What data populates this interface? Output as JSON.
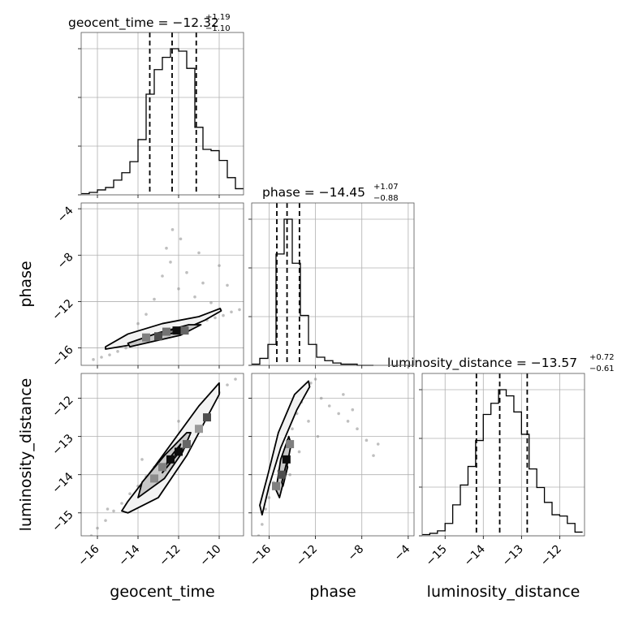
{
  "chart_data": {
    "type": "corner",
    "grid": true,
    "params": [
      {
        "name": "geocent_time",
        "xlabel": "geocent_time",
        "ylabel": "",
        "range": [
          -16.8,
          -8.8
        ],
        "ticks": [
          -16,
          -14,
          -12,
          -10
        ],
        "tick_labels": [
          "−16",
          "−14",
          "−12",
          "−10"
        ],
        "title_main": "geocent_time = −12.32",
        "title_plus": "+1.19",
        "title_minus": "−1.10",
        "quantiles": [
          -13.42,
          -12.32,
          -11.13
        ],
        "hist": {
          "edges": [
            -16.8,
            -16.4,
            -16.0,
            -15.6,
            -15.2,
            -14.8,
            -14.4,
            -14.0,
            -13.6,
            -13.2,
            -12.8,
            -12.4,
            -12.0,
            -11.6,
            -11.2,
            -10.8,
            -10.4,
            -10.0,
            -9.6,
            -9.2,
            -8.8
          ],
          "counts": [
            1,
            2,
            4,
            6,
            12,
            18,
            27,
            45,
            82,
            102,
            112,
            119,
            117,
            103,
            55,
            37,
            36,
            28,
            14,
            5
          ]
        }
      },
      {
        "name": "phase",
        "xlabel": "phase",
        "ylabel": "phase",
        "range": [
          -17.5,
          -3.5
        ],
        "ticks": [
          -16,
          -12,
          -8,
          -4
        ],
        "tick_labels": [
          "−16",
          "−12",
          "−8",
          "−4"
        ],
        "title_main": "phase = −14.45",
        "title_plus": "+1.07",
        "title_minus": "−0.88",
        "quantiles": [
          -15.33,
          -14.45,
          -13.38
        ],
        "hist": {
          "edges": [
            -17.5,
            -16.8,
            -16.1,
            -15.4,
            -14.7,
            -14.0,
            -13.3,
            -12.6,
            -11.9,
            -11.2,
            -10.5,
            -9.8,
            -9.1,
            -8.4,
            -7.7,
            -7.0
          ],
          "counts": [
            1,
            6,
            18,
            96,
            126,
            88,
            43,
            18,
            7,
            4,
            2,
            1,
            1,
            0,
            0
          ]
        }
      },
      {
        "name": "luminosity_distance",
        "xlabel": "luminosity_distance",
        "ylabel": "luminosity_distance",
        "range": [
          -15.6,
          -11.35
        ],
        "ticks": [
          -15,
          -14,
          -13,
          -12
        ],
        "tick_labels": [
          "−15",
          "−14",
          "−13",
          "−12"
        ],
        "title_main": "luminosity_distance = −13.57",
        "title_plus": "+0.72",
        "title_minus": "−0.61",
        "quantiles": [
          -14.18,
          -13.57,
          -12.85
        ],
        "hist": {
          "edges": [
            -15.6,
            -15.4,
            -15.2,
            -15.0,
            -14.8,
            -14.6,
            -14.4,
            -14.2,
            -14.0,
            -13.8,
            -13.6,
            -13.4,
            -13.2,
            -13.0,
            -12.8,
            -12.6,
            -12.4,
            -12.2,
            -12.0,
            -11.8,
            -11.6,
            -11.4
          ],
          "counts": [
            1,
            2,
            4,
            10,
            25,
            41,
            56,
            77,
            98,
            107,
            118,
            113,
            100,
            82,
            54,
            39,
            27,
            17,
            16,
            10,
            3
          ]
        }
      }
    ],
    "pairs": [
      {
        "x": "geocent_time",
        "y": "phase",
        "points": [
          [
            -16.2,
            -17.0
          ],
          [
            -15.8,
            -16.8
          ],
          [
            -15.4,
            -16.6
          ],
          [
            -15.0,
            -16.3
          ],
          [
            -14.6,
            -16.0
          ],
          [
            -14.2,
            -15.7
          ],
          [
            -13.8,
            -15.4
          ],
          [
            -13.4,
            -15.2
          ],
          [
            -13.0,
            -15.0
          ],
          [
            -12.6,
            -14.7
          ],
          [
            -12.2,
            -14.5
          ],
          [
            -11.8,
            -14.3
          ],
          [
            -11.4,
            -14.1
          ],
          [
            -11.0,
            -13.8
          ],
          [
            -10.6,
            -13.6
          ],
          [
            -10.2,
            -13.4
          ],
          [
            -9.8,
            -13.2
          ],
          [
            -9.4,
            -12.9
          ],
          [
            -9.0,
            -12.7
          ],
          [
            -12.8,
            -9.8
          ],
          [
            -12.4,
            -8.6
          ],
          [
            -12.0,
            -10.9
          ],
          [
            -11.6,
            -9.5
          ],
          [
            -11.2,
            -11.6
          ],
          [
            -10.8,
            -10.4
          ],
          [
            -10.4,
            -12.1
          ],
          [
            -13.2,
            -11.8
          ],
          [
            -12.6,
            -7.4
          ],
          [
            -12.3,
            -5.8
          ],
          [
            -11.9,
            -6.6
          ],
          [
            -10.0,
            -8.9
          ],
          [
            -9.6,
            -10.6
          ],
          [
            -13.6,
            -13.1
          ],
          [
            -14.0,
            -13.9
          ],
          [
            -11.0,
            -7.8
          ]
        ],
        "contours": [
          [
            [
              -15.6,
              -15.9
            ],
            [
              -14.5,
              -14.8
            ],
            [
              -12.8,
              -13.9
            ],
            [
              -11.0,
              -13.3
            ],
            [
              -9.95,
              -12.6
            ],
            [
              -9.9,
              -12.8
            ],
            [
              -10.7,
              -13.6
            ],
            [
              -12.4,
              -14.9
            ],
            [
              -14.2,
              -15.7
            ],
            [
              -15.6,
              -16.1
            ]
          ],
          [
            [
              -14.5,
              -15.6
            ],
            [
              -13.0,
              -14.7
            ],
            [
              -11.5,
              -14.0
            ],
            [
              -10.9,
              -14.0
            ],
            [
              -11.9,
              -14.9
            ],
            [
              -13.4,
              -15.5
            ],
            [
              -14.4,
              -15.9
            ]
          ],
          [
            [
              -12.7,
              -14.6
            ],
            [
              -12.0,
              -14.3
            ],
            [
              -11.9,
              -14.6
            ],
            [
              -12.5,
              -14.8
            ]
          ]
        ],
        "density_cells": [
          [
            -13.6,
            -15.1,
            0.5
          ],
          [
            -13.0,
            -15.0,
            0.7
          ],
          [
            -12.6,
            -14.6,
            0.55
          ],
          [
            -12.1,
            -14.5,
            0.95
          ],
          [
            -11.7,
            -14.5,
            0.6
          ]
        ]
      },
      {
        "x": "geocent_time",
        "y": "luminosity_distance",
        "points": [
          [
            -16.3,
            -15.6
          ],
          [
            -16.0,
            -15.4
          ],
          [
            -15.6,
            -15.2
          ],
          [
            -15.2,
            -14.95
          ],
          [
            -14.8,
            -14.75
          ],
          [
            -14.4,
            -14.5
          ],
          [
            -14.0,
            -14.3
          ],
          [
            -13.6,
            -14.05
          ],
          [
            -13.2,
            -13.8
          ],
          [
            -12.8,
            -13.6
          ],
          [
            -12.4,
            -13.3
          ],
          [
            -12.0,
            -13.05
          ],
          [
            -11.6,
            -12.8
          ],
          [
            -11.2,
            -12.55
          ],
          [
            -10.8,
            -12.3
          ],
          [
            -10.4,
            -12.05
          ],
          [
            -10.0,
            -11.85
          ],
          [
            -9.6,
            -11.65
          ],
          [
            -9.2,
            -11.5
          ],
          [
            -15.5,
            -14.9
          ],
          [
            -14.1,
            -14.7
          ],
          [
            -12.0,
            -12.6
          ],
          [
            -11.5,
            -13.2
          ],
          [
            -13.8,
            -13.6
          ]
        ],
        "contours": [
          [
            [
              -14.5,
              -15.0
            ],
            [
              -13.0,
              -14.6
            ],
            [
              -11.6,
              -13.5
            ],
            [
              -10.0,
              -11.9
            ],
            [
              -10.0,
              -11.6
            ],
            [
              -11.0,
              -12.2
            ],
            [
              -13.2,
              -13.8
            ],
            [
              -14.5,
              -14.7
            ],
            [
              -14.8,
              -14.95
            ]
          ],
          [
            [
              -14.0,
              -14.6
            ],
            [
              -12.7,
              -14.1
            ],
            [
              -11.8,
              -13.4
            ],
            [
              -11.4,
              -12.9
            ],
            [
              -11.6,
              -12.9
            ],
            [
              -12.7,
              -13.5
            ],
            [
              -13.8,
              -14.2
            ]
          ],
          [
            [
              -12.8,
              -13.95
            ],
            [
              -12.1,
              -13.5
            ],
            [
              -11.9,
              -13.2
            ],
            [
              -12.5,
              -13.6
            ]
          ]
        ],
        "density_cells": [
          [
            -12.4,
            -13.6,
            0.95
          ],
          [
            -12.0,
            -13.4,
            0.95
          ],
          [
            -11.6,
            -13.2,
            0.6
          ],
          [
            -12.8,
            -13.8,
            0.5
          ],
          [
            -13.2,
            -14.1,
            0.45
          ],
          [
            -10.6,
            -12.5,
            0.7
          ],
          [
            -11.0,
            -12.8,
            0.4
          ]
        ]
      },
      {
        "x": "phase",
        "y": "luminosity_distance",
        "points": [
          [
            -16.9,
            -15.6
          ],
          [
            -16.6,
            -15.3
          ],
          [
            -16.3,
            -14.9
          ],
          [
            -16.0,
            -14.6
          ],
          [
            -15.6,
            -14.2
          ],
          [
            -15.2,
            -13.9
          ],
          [
            -14.8,
            -13.5
          ],
          [
            -14.4,
            -13.1
          ],
          [
            -14.0,
            -12.8
          ],
          [
            -13.6,
            -12.4
          ],
          [
            -13.2,
            -12.1
          ],
          [
            -12.8,
            -11.8
          ],
          [
            -12.4,
            -11.6
          ],
          [
            -12.0,
            -11.5
          ],
          [
            -11.5,
            -12.0
          ],
          [
            -10.8,
            -12.2
          ],
          [
            -10.0,
            -12.4
          ],
          [
            -9.2,
            -12.6
          ],
          [
            -8.4,
            -12.8
          ],
          [
            -7.6,
            -13.1
          ],
          [
            -7.0,
            -13.5
          ],
          [
            -6.6,
            -13.2
          ],
          [
            -11.8,
            -13.0
          ],
          [
            -12.6,
            -12.6
          ],
          [
            -13.4,
            -13.4
          ],
          [
            -14.2,
            -14.0
          ],
          [
            -9.6,
            -11.9
          ],
          [
            -8.8,
            -12.3
          ]
        ],
        "contours": [
          [
            [
              -16.6,
              -15.05
            ],
            [
              -16.0,
              -14.3
            ],
            [
              -15.0,
              -13.3
            ],
            [
              -13.6,
              -12.3
            ],
            [
              -12.5,
              -11.7
            ],
            [
              -12.6,
              -11.55
            ],
            [
              -13.8,
              -11.9
            ],
            [
              -15.2,
              -12.9
            ],
            [
              -16.1,
              -14.0
            ],
            [
              -16.8,
              -14.8
            ]
          ],
          [
            [
              -15.4,
              -14.4
            ],
            [
              -15.0,
              -13.6
            ],
            [
              -14.3,
              -13.0
            ],
            [
              -14.1,
              -13.2
            ],
            [
              -14.6,
              -14.0
            ],
            [
              -15.1,
              -14.6
            ]
          ],
          [
            [
              -14.9,
              -14.2
            ],
            [
              -14.5,
              -13.7
            ],
            [
              -14.4,
              -13.8
            ],
            [
              -14.8,
              -14.3
            ]
          ]
        ],
        "density_cells": [
          [
            -14.5,
            -13.6,
            0.95
          ],
          [
            -14.9,
            -14.0,
            0.7
          ],
          [
            -15.4,
            -14.3,
            0.5
          ],
          [
            -14.2,
            -13.2,
            0.5
          ]
        ]
      }
    ]
  }
}
